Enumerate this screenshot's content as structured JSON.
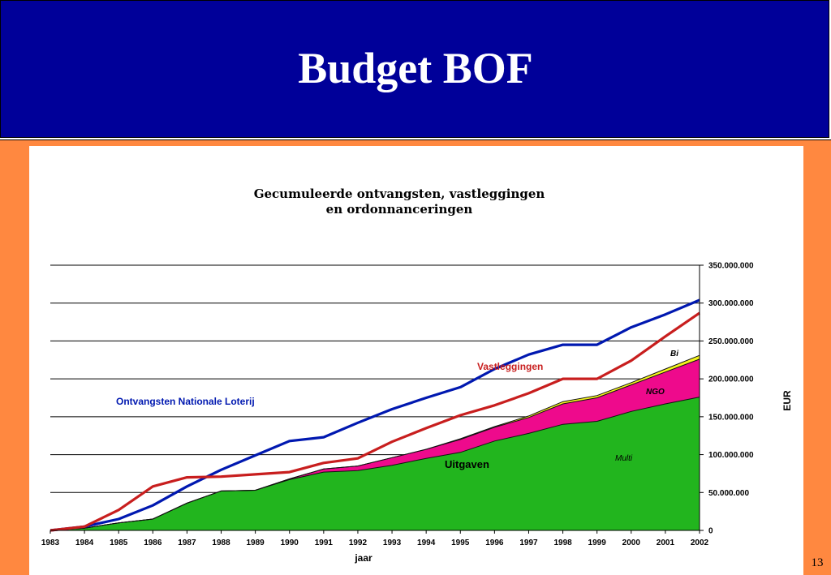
{
  "slide": {
    "title": "Budget BOF",
    "page_number": "13"
  },
  "colors": {
    "header_bg": "#000099",
    "frame_bg": "#ff8840",
    "receipts_line": "#0018b0",
    "commitments_line": "#c81e1e",
    "multi_area": "#22b51e",
    "ngo_area": "#ee0a8c",
    "bi_area": "#f4f41c"
  },
  "chart_data": {
    "type": "area",
    "title": "Gecumuleerde ontvangsten, vastleggingen",
    "subtitle": "en ordonnanceringen",
    "xlabel": "jaar",
    "ylabel": "EUR",
    "ylim": [
      0,
      350000000
    ],
    "grid": true,
    "y_axis_position": "right",
    "x": [
      "1983",
      "1984",
      "1985",
      "1986",
      "1987",
      "1988",
      "1989",
      "1990",
      "1991",
      "1992",
      "1993",
      "1994",
      "1995",
      "1996",
      "1997",
      "1998",
      "1999",
      "2000",
      "2001",
      "2002"
    ],
    "y_ticks": [
      "0",
      "50.000.000",
      "100.000.000",
      "150.000.000",
      "200.000.000",
      "250.000.000",
      "300.000.000",
      "350.000.000"
    ],
    "stacked_areas": [
      {
        "name": "Multi",
        "values": [
          0,
          3000000,
          10000000,
          15000000,
          36000000,
          52000000,
          53000000,
          67000000,
          77000000,
          79000000,
          86000000,
          95000000,
          103000000,
          118000000,
          128000000,
          140000000,
          144000000,
          157000000,
          167000000,
          176000000
        ]
      },
      {
        "name": "NGO",
        "values": [
          0,
          0,
          0,
          0,
          0,
          0,
          0,
          1000000,
          4000000,
          6000000,
          10000000,
          12000000,
          17000000,
          18000000,
          21000000,
          27000000,
          31000000,
          35000000,
          42000000,
          50000000
        ]
      },
      {
        "name": "Bi",
        "values": [
          0,
          0,
          0,
          0,
          0,
          0,
          0,
          0,
          0,
          0,
          0,
          0,
          1000000,
          1000000,
          2000000,
          3000000,
          3000000,
          3000000,
          4000000,
          5000000
        ]
      }
    ],
    "lines": [
      {
        "name": "Ontvangsten Nationale Loterij",
        "values": [
          0,
          5000000,
          15000000,
          33000000,
          58000000,
          80000000,
          99000000,
          118000000,
          123000000,
          142000000,
          160000000,
          175000000,
          189000000,
          213000000,
          232000000,
          245000000,
          245000000,
          268000000,
          285000000,
          304000000
        ]
      },
      {
        "name": "Vastleggingen",
        "values": [
          0,
          5000000,
          27000000,
          58000000,
          70000000,
          71000000,
          74000000,
          77000000,
          89000000,
          95000000,
          117000000,
          135000000,
          152000000,
          165000000,
          181000000,
          200000000,
          200000000,
          224000000,
          256000000,
          287000000
        ]
      }
    ],
    "annotations": [
      "Ontvangsten Nationale Loterij",
      "Vastleggingen",
      "Uitgaven",
      "Bi",
      "NGO",
      "Multi"
    ]
  }
}
